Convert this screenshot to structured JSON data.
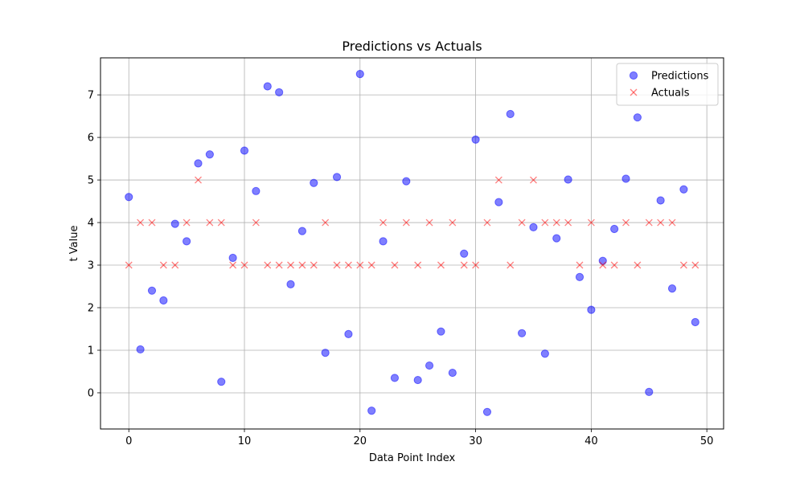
{
  "chart_data": {
    "type": "scatter",
    "title": "Predictions vs Actuals",
    "xlabel": "Data Point Index",
    "ylabel": "t Value",
    "xlim": [
      -2.45,
      51.45
    ],
    "ylim": [
      -0.85,
      7.87
    ],
    "xticks": [
      0,
      10,
      20,
      30,
      40,
      50
    ],
    "yticks": [
      0,
      1,
      2,
      3,
      4,
      5,
      6,
      7
    ],
    "grid": true,
    "legend_position": "top-right",
    "series": [
      {
        "name": "Predictions",
        "marker": "circle",
        "color": "#0000ff",
        "x": [
          0,
          1,
          2,
          3,
          4,
          5,
          6,
          7,
          8,
          9,
          10,
          11,
          12,
          13,
          14,
          15,
          16,
          17,
          18,
          19,
          20,
          21,
          22,
          23,
          24,
          25,
          26,
          27,
          28,
          29,
          30,
          31,
          32,
          33,
          34,
          35,
          36,
          37,
          38,
          39,
          40,
          41,
          42,
          43,
          44,
          45,
          46,
          47,
          48,
          49
        ],
        "y": [
          4.6,
          1.02,
          2.4,
          2.17,
          3.97,
          3.56,
          5.39,
          5.6,
          0.26,
          3.17,
          5.69,
          4.74,
          7.2,
          7.06,
          2.55,
          3.8,
          4.93,
          0.94,
          5.07,
          1.38,
          7.49,
          -0.42,
          3.56,
          0.35,
          4.97,
          0.3,
          0.64,
          1.44,
          0.47,
          3.27,
          5.95,
          -0.45,
          4.48,
          6.55,
          1.4,
          3.89,
          0.92,
          3.63,
          5.01,
          2.72,
          1.95,
          3.1,
          3.85,
          5.03,
          6.47,
          0.02,
          4.52,
          2.45,
          4.78,
          1.66
        ]
      },
      {
        "name": "Actuals",
        "marker": "x",
        "color": "#ff0000",
        "x": [
          0,
          1,
          2,
          3,
          4,
          5,
          6,
          7,
          8,
          9,
          10,
          11,
          12,
          13,
          14,
          15,
          16,
          17,
          18,
          19,
          20,
          21,
          22,
          23,
          24,
          25,
          26,
          27,
          28,
          29,
          30,
          31,
          32,
          33,
          34,
          35,
          36,
          37,
          38,
          39,
          40,
          41,
          42,
          43,
          44,
          45,
          46,
          47,
          48,
          49
        ],
        "y": [
          3,
          4,
          4,
          3,
          3,
          4,
          5,
          4,
          4,
          3,
          3,
          4,
          3,
          3,
          3,
          3,
          3,
          4,
          3,
          3,
          3,
          3,
          4,
          3,
          4,
          3,
          4,
          3,
          4,
          3,
          3,
          4,
          5,
          3,
          4,
          5,
          4,
          4,
          4,
          3,
          4,
          3,
          3,
          4,
          3,
          4,
          4,
          4,
          3,
          3
        ]
      }
    ]
  }
}
